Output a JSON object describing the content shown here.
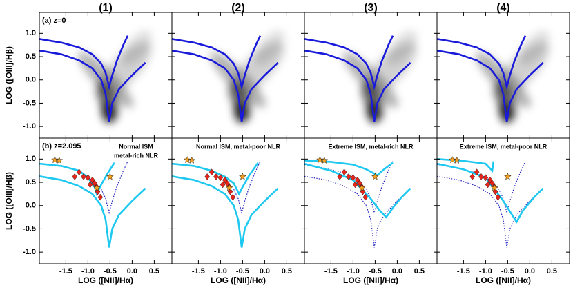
{
  "chart_data": {
    "type": "scatter",
    "xlabel": "LOG ([NII]/Hα)",
    "ylabel": "LOG ([OIII]/Hβ)",
    "xlim": [
      -2.1,
      0.9
    ],
    "ylim": [
      -1.25,
      1.45
    ],
    "xticks": [
      -1.5,
      {
        "value": -1,
        "label": "-1.0"
      },
      -0.5,
      {
        "value": 0,
        "label": "0.0"
      },
      0.5
    ],
    "yticks": [
      {
        "value": 1,
        "label": "1.0"
      },
      0.5,
      {
        "value": 0,
        "label": "0.0"
      },
      -0.5,
      {
        "value": -1,
        "label": "-1.0"
      }
    ],
    "columns": [
      {
        "title": "(1)"
      },
      {
        "title": "(2)"
      },
      {
        "title": "(3)"
      },
      {
        "title": "(4)"
      }
    ],
    "panels": [
      {
        "label": "(a) z=0",
        "series": [
          {
            "type": "line",
            "style": "solid",
            "color": "#1a1adb",
            "x": [
              -2.1,
              -1.6,
              -1.2,
              -0.9,
              -0.7,
              -0.6,
              -0.52,
              -0.45,
              -0.35,
              -0.2,
              -0.1
            ],
            "y": [
              0.88,
              0.8,
              0.7,
              0.55,
              0.35,
              0.15,
              -0.15,
              0.1,
              0.4,
              0.75,
              0.95
            ]
          },
          {
            "type": "line",
            "style": "solid",
            "color": "#1a1adb",
            "x": [
              -2.1,
              -1.6,
              -1.2,
              -0.9,
              -0.7,
              -0.6,
              -0.52,
              -0.45,
              -0.3,
              0,
              0.3
            ],
            "y": [
              0.63,
              0.55,
              0.42,
              0.25,
              0.0,
              -0.3,
              -0.9,
              -0.5,
              -0.2,
              0.1,
              0.37
            ]
          }
        ]
      },
      {
        "series": [
          {
            "type": "line",
            "style": "solid",
            "color": "#1a1adb",
            "x": [
              -2.1,
              -1.6,
              -1.2,
              -0.9,
              -0.7,
              -0.6,
              -0.52,
              -0.45,
              -0.35,
              -0.2,
              -0.1
            ],
            "y": [
              0.88,
              0.8,
              0.7,
              0.55,
              0.35,
              0.15,
              -0.15,
              0.1,
              0.4,
              0.75,
              0.95
            ]
          },
          {
            "type": "line",
            "style": "solid",
            "color": "#1a1adb",
            "x": [
              -2.1,
              -1.6,
              -1.2,
              -0.9,
              -0.7,
              -0.6,
              -0.52,
              -0.45,
              -0.3,
              0,
              0.3
            ],
            "y": [
              0.63,
              0.55,
              0.42,
              0.25,
              0.0,
              -0.3,
              -0.9,
              -0.5,
              -0.2,
              0.1,
              0.37
            ]
          }
        ]
      },
      {
        "series": [
          {
            "type": "line",
            "style": "solid",
            "color": "#1a1adb",
            "x": [
              -2.1,
              -1.6,
              -1.2,
              -0.9,
              -0.7,
              -0.6,
              -0.52,
              -0.45,
              -0.35,
              -0.2,
              -0.1
            ],
            "y": [
              0.88,
              0.8,
              0.7,
              0.55,
              0.35,
              0.15,
              -0.15,
              0.1,
              0.4,
              0.75,
              0.95
            ]
          },
          {
            "type": "line",
            "style": "solid",
            "color": "#1a1adb",
            "x": [
              -2.1,
              -1.6,
              -1.2,
              -0.9,
              -0.7,
              -0.6,
              -0.52,
              -0.45,
              -0.3,
              0,
              0.3
            ],
            "y": [
              0.63,
              0.55,
              0.42,
              0.25,
              0.0,
              -0.3,
              -0.9,
              -0.5,
              -0.2,
              0.1,
              0.37
            ]
          }
        ]
      },
      {
        "series": [
          {
            "type": "line",
            "style": "solid",
            "color": "#1a1adb",
            "x": [
              -2.1,
              -1.6,
              -1.2,
              -0.9,
              -0.7,
              -0.6,
              -0.52,
              -0.45,
              -0.35,
              -0.2,
              -0.1
            ],
            "y": [
              0.88,
              0.8,
              0.7,
              0.55,
              0.35,
              0.15,
              -0.15,
              0.1,
              0.4,
              0.75,
              0.95
            ]
          },
          {
            "type": "line",
            "style": "solid",
            "color": "#1a1adb",
            "x": [
              -2.1,
              -1.6,
              -1.2,
              -0.9,
              -0.7,
              -0.6,
              -0.52,
              -0.45,
              -0.3,
              0,
              0.3
            ],
            "y": [
              0.63,
              0.55,
              0.42,
              0.25,
              0.0,
              -0.3,
              -0.9,
              -0.5,
              -0.2,
              0.1,
              0.37
            ]
          }
        ]
      },
      {
        "label": "(b) z=2.095",
        "annotation": [
          "Normal ISM",
          "metal-rich NLR"
        ],
        "series": [
          {
            "type": "line",
            "style": "dotted",
            "color": "#2020c0",
            "x": [
              -0.7,
              -0.6,
              -0.52,
              -0.45,
              -0.35,
              -0.2,
              -0.1
            ],
            "y": [
              0.35,
              0.15,
              -0.15,
              0.1,
              0.4,
              0.75,
              0.95
            ]
          },
          {
            "type": "line",
            "style": "dotted",
            "color": "#2020c0",
            "x": [
              -0.7,
              -0.6,
              -0.52,
              -0.45,
              -0.3,
              0,
              0.3
            ],
            "y": [
              0.0,
              -0.3,
              -0.9,
              -0.5,
              -0.2,
              0.1,
              0.37
            ]
          },
          {
            "type": "line",
            "style": "solid",
            "color": "#1ec8f0",
            "x": [
              -2.1,
              -1.6,
              -1.2,
              -1.0,
              -0.85,
              -0.8,
              -0.7,
              -0.55,
              -0.4
            ],
            "y": [
              0.9,
              0.85,
              0.75,
              0.6,
              0.4,
              0.25,
              0.45,
              0.7,
              0.92
            ]
          },
          {
            "type": "line",
            "style": "solid",
            "color": "#1ec8f0",
            "x": [
              -2.1,
              -1.6,
              -1.2,
              -0.9,
              -0.7,
              -0.6,
              -0.52,
              -0.45,
              -0.3,
              0,
              0.3
            ],
            "y": [
              0.63,
              0.55,
              0.42,
              0.25,
              0.0,
              -0.3,
              -0.9,
              -0.5,
              -0.2,
              0.1,
              0.37
            ]
          },
          {
            "type": "scatter",
            "marker": "diamond",
            "color": "#e8251b",
            "x": [
              -1.3,
              -1.2,
              -1.1,
              -1.0,
              -0.95,
              -0.9,
              -0.85,
              -0.8,
              -0.78,
              -0.72
            ],
            "y": [
              0.62,
              0.72,
              0.62,
              0.6,
              0.45,
              0.55,
              0.48,
              0.4,
              0.3,
              0.18
            ]
          },
          {
            "type": "scatter",
            "marker": "star",
            "color": "#f5a020",
            "x": [
              -1.75,
              -1.65,
              -0.8,
              -0.5
            ],
            "y": [
              0.98,
              0.97,
              0.38,
              0.62
            ]
          }
        ]
      },
      {
        "annotation": [
          "Normal ISM, metal-poor NLR"
        ],
        "series": [
          {
            "type": "line",
            "style": "dotted",
            "color": "#2020c0",
            "x": [
              -0.7,
              -0.6,
              -0.52,
              -0.45,
              -0.35,
              -0.2,
              -0.1
            ],
            "y": [
              0.35,
              0.15,
              -0.15,
              0.1,
              0.4,
              0.75,
              0.95
            ]
          },
          {
            "type": "line",
            "style": "dotted",
            "color": "#2020c0",
            "x": [
              -0.7,
              -0.6,
              -0.52,
              -0.45,
              -0.3,
              0,
              0.3
            ],
            "y": [
              0.0,
              -0.3,
              -0.9,
              -0.5,
              -0.2,
              0.1,
              0.37
            ]
          },
          {
            "type": "line",
            "style": "solid",
            "color": "#1ec8f0",
            "x": [
              -2.1,
              -1.6,
              -1.2,
              -0.9,
              -0.7,
              -0.58,
              -0.5,
              -0.35,
              -0.15
            ],
            "y": [
              0.9,
              0.85,
              0.75,
              0.62,
              0.48,
              0.25,
              0.4,
              0.65,
              0.92
            ]
          },
          {
            "type": "line",
            "style": "solid",
            "color": "#1ec8f0",
            "x": [
              -2.1,
              -1.6,
              -1.2,
              -0.9,
              -0.7,
              -0.6,
              -0.52,
              -0.45,
              -0.3,
              0,
              0.3
            ],
            "y": [
              0.63,
              0.55,
              0.42,
              0.25,
              0.0,
              -0.3,
              -0.9,
              -0.5,
              -0.2,
              0.1,
              0.37
            ]
          },
          {
            "type": "scatter",
            "marker": "diamond",
            "color": "#e8251b",
            "x": [
              -1.3,
              -1.2,
              -1.1,
              -1.0,
              -0.95,
              -0.9,
              -0.85,
              -0.8,
              -0.78,
              -0.72
            ],
            "y": [
              0.62,
              0.72,
              0.62,
              0.6,
              0.45,
              0.55,
              0.48,
              0.4,
              0.3,
              0.18
            ]
          },
          {
            "type": "scatter",
            "marker": "star",
            "color": "#f5a020",
            "x": [
              -1.75,
              -1.65,
              -0.8,
              -0.5
            ],
            "y": [
              0.98,
              0.97,
              0.38,
              0.62
            ]
          }
        ]
      },
      {
        "annotation": [
          "Extreme ISM, metal-rich NLR"
        ],
        "series": [
          {
            "type": "line",
            "style": "dotted",
            "color": "#2020c0",
            "x": [
              -2.1,
              -1.6,
              -1.2,
              -0.9,
              -0.7,
              -0.6,
              -0.52,
              -0.45,
              -0.35,
              -0.2,
              -0.1
            ],
            "y": [
              0.88,
              0.8,
              0.7,
              0.55,
              0.35,
              0.15,
              -0.15,
              0.1,
              0.4,
              0.75,
              0.95
            ]
          },
          {
            "type": "line",
            "style": "dotted",
            "color": "#2020c0",
            "x": [
              -2.1,
              -1.6,
              -1.2,
              -0.9,
              -0.7,
              -0.6,
              -0.52,
              -0.45,
              -0.3,
              0,
              0.3
            ],
            "y": [
              0.63,
              0.55,
              0.42,
              0.25,
              0.0,
              -0.3,
              -0.9,
              -0.5,
              -0.2,
              0.1,
              0.37
            ]
          },
          {
            "type": "line",
            "style": "solid",
            "color": "#1ec8f0",
            "x": [
              -2.1,
              -1.5,
              -1.0,
              -0.7,
              -0.45,
              -0.3,
              -0.1
            ],
            "y": [
              0.97,
              0.94,
              0.88,
              0.78,
              0.65,
              0.78,
              0.92
            ]
          },
          {
            "type": "line",
            "style": "solid",
            "color": "#1ec8f0",
            "x": [
              -2.1,
              -1.5,
              -1.0,
              -0.6,
              -0.4,
              -0.25,
              -0.1,
              0.1,
              0.3
            ],
            "y": [
              0.9,
              0.75,
              0.55,
              0.15,
              -0.1,
              -0.25,
              -0.05,
              0.18,
              0.37
            ]
          },
          {
            "type": "scatter",
            "marker": "diamond",
            "color": "#e8251b",
            "x": [
              -1.3,
              -1.2,
              -1.1,
              -1.0,
              -0.95,
              -0.9,
              -0.85,
              -0.8,
              -0.78,
              -0.72
            ],
            "y": [
              0.62,
              0.72,
              0.62,
              0.6,
              0.45,
              0.55,
              0.48,
              0.4,
              0.3,
              0.18
            ]
          },
          {
            "type": "scatter",
            "marker": "star",
            "color": "#f5a020",
            "x": [
              -1.75,
              -1.65,
              -0.8,
              -0.5
            ],
            "y": [
              0.98,
              0.97,
              0.38,
              0.62
            ]
          }
        ]
      },
      {
        "annotation": [
          "Extreme ISM, metal-poor NLR"
        ],
        "series": [
          {
            "type": "line",
            "style": "dotted",
            "color": "#2020c0",
            "x": [
              -2.1,
              -1.6,
              -1.2,
              -0.9,
              -0.7,
              -0.6,
              -0.52,
              -0.45,
              -0.35,
              -0.2,
              -0.1
            ],
            "y": [
              0.88,
              0.8,
              0.7,
              0.55,
              0.35,
              0.15,
              -0.15,
              0.1,
              0.4,
              0.75,
              0.95
            ]
          },
          {
            "type": "line",
            "style": "dotted",
            "color": "#2020c0",
            "x": [
              -2.1,
              -1.6,
              -1.2,
              -0.9,
              -0.7,
              -0.6,
              -0.52,
              -0.45,
              -0.3,
              0,
              0.3
            ],
            "y": [
              0.63,
              0.55,
              0.42,
              0.25,
              0.0,
              -0.3,
              -0.9,
              -0.5,
              -0.2,
              0.1,
              0.37
            ]
          },
          {
            "type": "line",
            "style": "solid",
            "color": "#1ec8f0",
            "x": [
              -2.1,
              -1.5,
              -1.0,
              -0.85,
              -0.82
            ],
            "y": [
              1.0,
              0.96,
              0.9,
              0.75,
              0.95
            ]
          },
          {
            "type": "line",
            "style": "solid",
            "color": "#1ec8f0",
            "x": [
              -2.1,
              -1.5,
              -1.0,
              -0.6,
              -0.4,
              -0.3,
              -0.15,
              0.1,
              0.3
            ],
            "y": [
              0.9,
              0.78,
              0.6,
              0.1,
              -0.2,
              -0.35,
              -0.1,
              0.18,
              0.37
            ]
          },
          {
            "type": "scatter",
            "marker": "diamond",
            "color": "#e8251b",
            "x": [
              -1.3,
              -1.2,
              -1.1,
              -1.0,
              -0.95,
              -0.9,
              -0.85,
              -0.8,
              -0.78,
              -0.72
            ],
            "y": [
              0.62,
              0.72,
              0.62,
              0.6,
              0.45,
              0.55,
              0.48,
              0.4,
              0.3,
              0.18
            ]
          },
          {
            "type": "scatter",
            "marker": "star",
            "color": "#f5a020",
            "x": [
              -1.75,
              -1.65,
              -0.8,
              -0.5
            ],
            "y": [
              0.98,
              0.97,
              0.38,
              0.62
            ]
          }
        ]
      }
    ]
  }
}
